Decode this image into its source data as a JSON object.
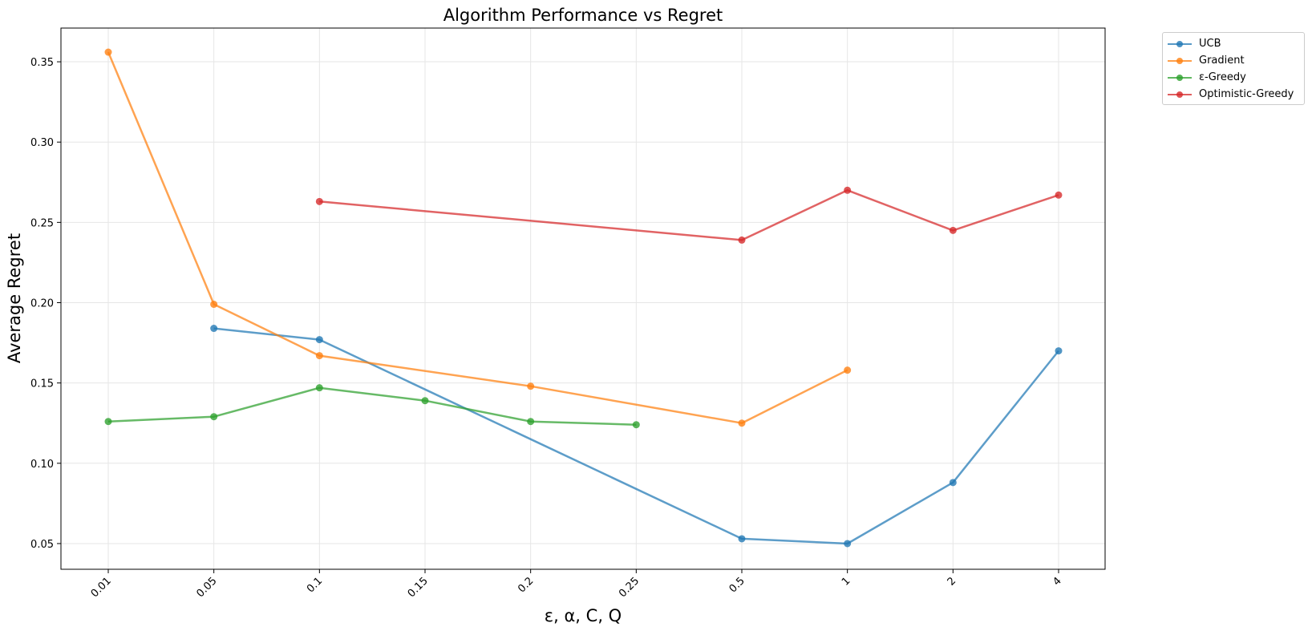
{
  "chart_data": {
    "type": "line",
    "title": "Algorithm Performance vs Regret",
    "xlabel": "ε, α, C, Q",
    "ylabel": "Average Regret",
    "categories": [
      "0.01",
      "0.05",
      "0.1",
      "0.15",
      "0.2",
      "0.25",
      "0.5",
      "1",
      "2",
      "4"
    ],
    "x_scale": "categorical",
    "ylim": [
      0.034,
      0.371
    ],
    "yticks": [
      0.05,
      0.1,
      0.15,
      0.2,
      0.25,
      0.3,
      0.35
    ],
    "ytick_labels": [
      "0.05",
      "0.10",
      "0.15",
      "0.20",
      "0.25",
      "0.30",
      "0.35"
    ],
    "grid": true,
    "legend_position": "outside-top-right",
    "series": [
      {
        "name": "UCB",
        "color": "#1f77b4",
        "x": [
          "0.05",
          "0.1",
          "0.5",
          "1",
          "2",
          "4"
        ],
        "values": [
          0.184,
          0.177,
          0.053,
          0.05,
          0.088,
          0.17
        ]
      },
      {
        "name": "Gradient",
        "color": "#ff7f0e",
        "x": [
          "0.01",
          "0.05",
          "0.1",
          "0.2",
          "0.5",
          "1"
        ],
        "values": [
          0.356,
          0.199,
          0.167,
          0.148,
          0.125,
          0.158
        ]
      },
      {
        "name": "ε-Greedy",
        "color": "#2ca02c",
        "x": [
          "0.01",
          "0.05",
          "0.1",
          "0.15",
          "0.2",
          "0.25"
        ],
        "values": [
          0.126,
          0.129,
          0.147,
          0.139,
          0.126,
          0.124
        ]
      },
      {
        "name": "Optimistic-Greedy",
        "color": "#d62728",
        "x": [
          "0.1",
          "0.5",
          "1",
          "2",
          "4"
        ],
        "values": [
          0.263,
          0.239,
          0.27,
          0.245,
          0.267
        ]
      }
    ]
  }
}
